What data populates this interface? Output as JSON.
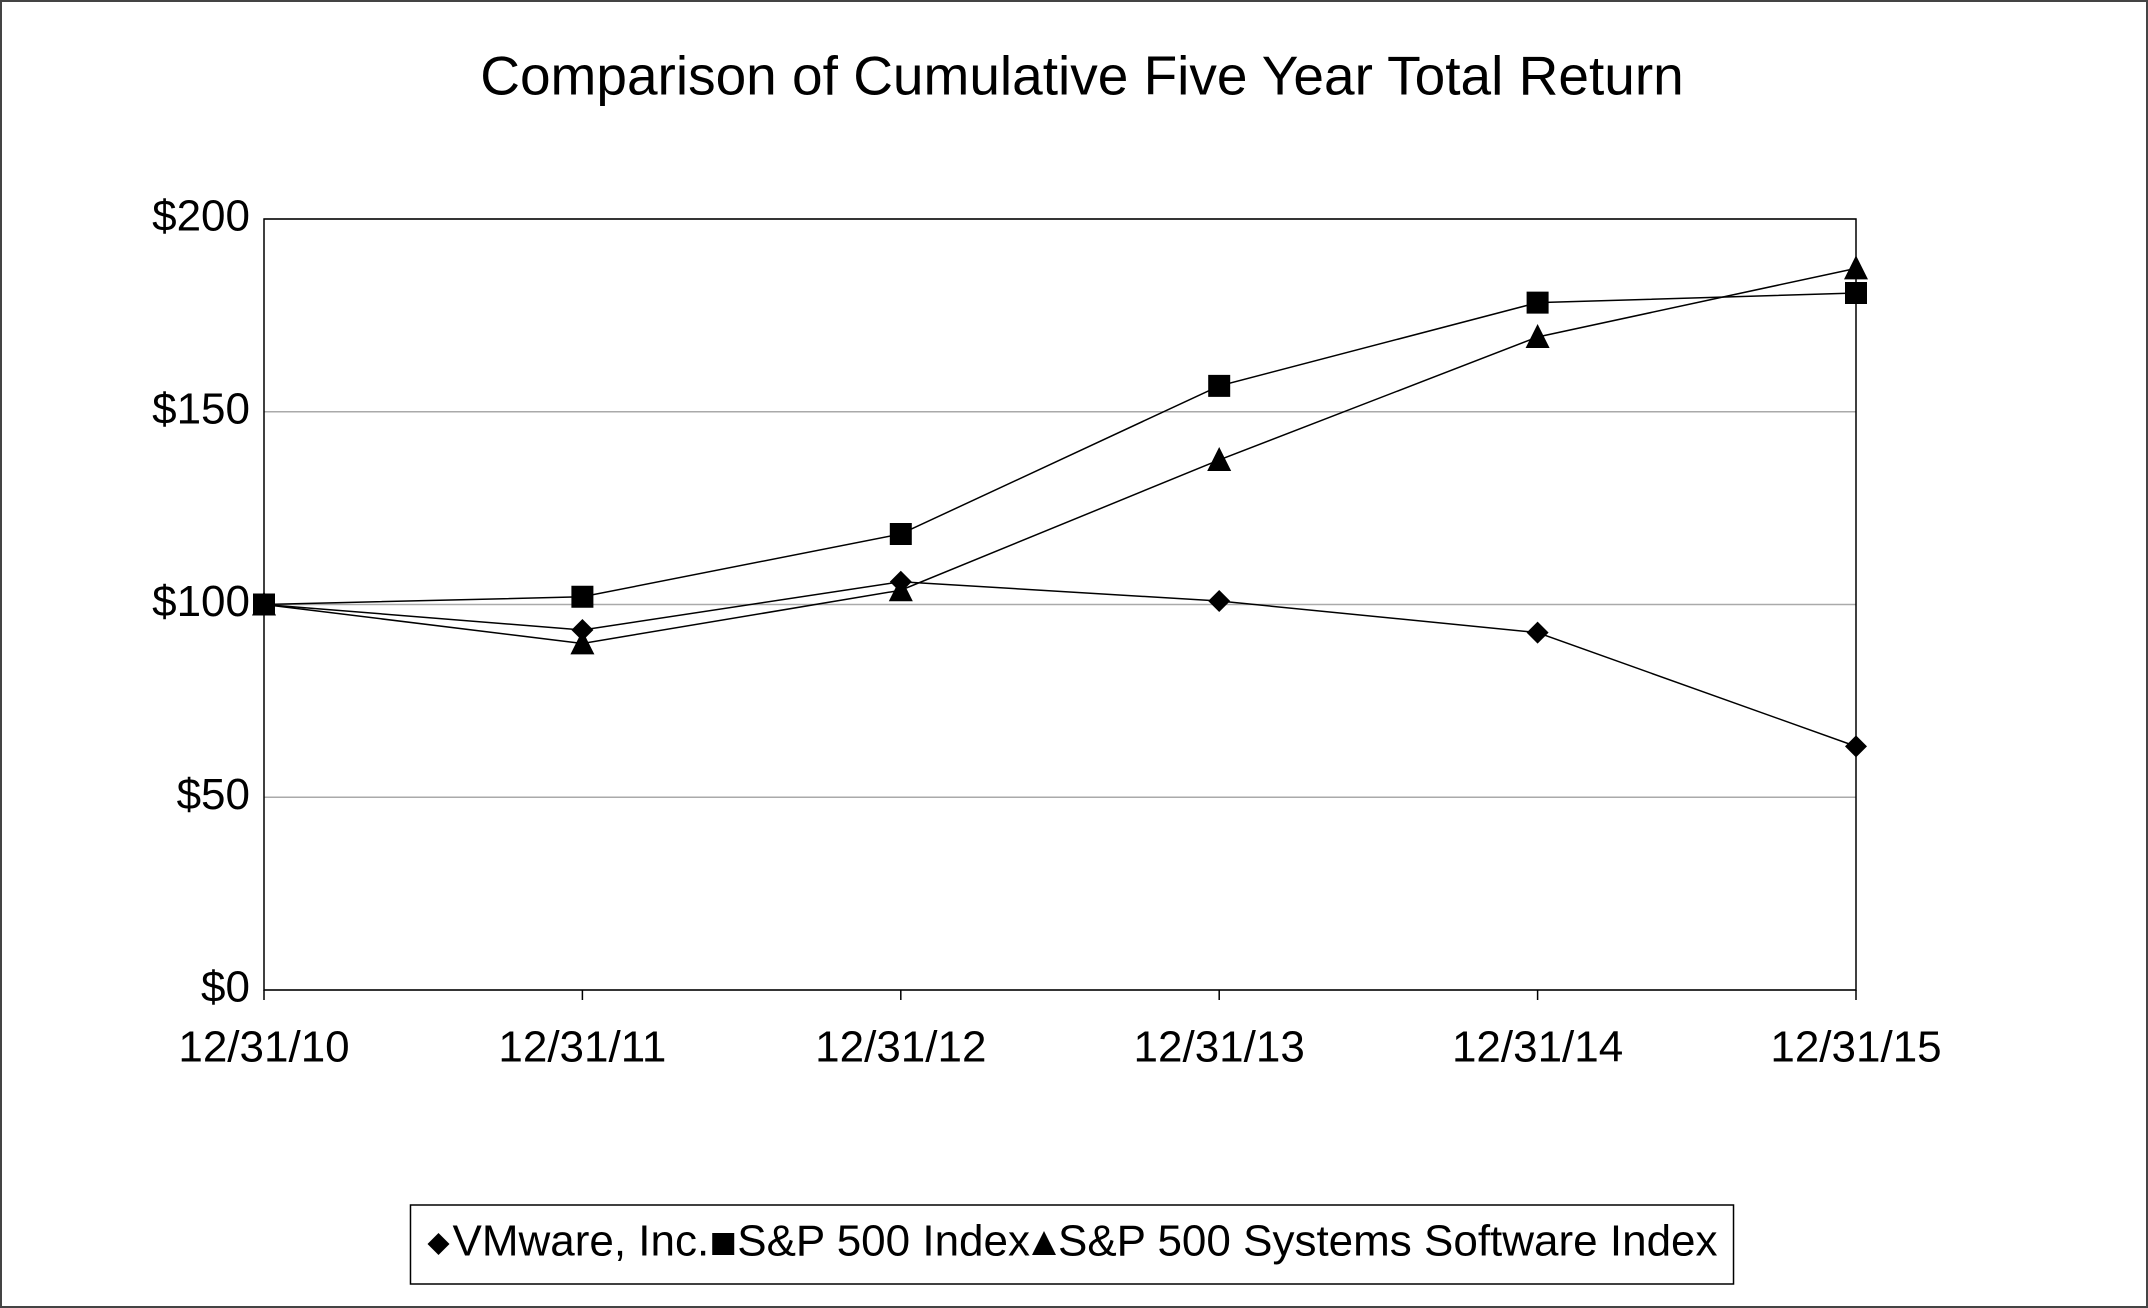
{
  "chart_data": {
    "type": "line",
    "title": "Comparison of Cumulative Five Year Total Return",
    "categories": [
      "12/31/10",
      "12/31/11",
      "12/31/12",
      "12/31/13",
      "12/31/14",
      "12/31/15"
    ],
    "series": [
      {
        "name": "VMware, Inc.",
        "color": "#000000",
        "marker": "diamond",
        "values": [
          100,
          93.4,
          105.9,
          100.9,
          92.7,
          63.2
        ]
      },
      {
        "name": "S&P 500 Index",
        "color": "#000000",
        "marker": "square",
        "values": [
          100,
          102,
          118.3,
          156.7,
          178.3,
          180.8
        ]
      },
      {
        "name": "S&P 500 Systems Software Index",
        "color": "#000000",
        "marker": "triangle",
        "values": [
          100,
          89.9,
          103.7,
          137.5,
          169.4,
          187.2
        ]
      }
    ],
    "ylim": [
      0,
      200
    ],
    "yticks": [
      {
        "value": 0,
        "label": "$0"
      },
      {
        "value": 50,
        "label": "$50"
      },
      {
        "value": 100,
        "label": "$100"
      },
      {
        "value": 150,
        "label": "$150"
      },
      {
        "value": 200,
        "label": "$200"
      }
    ],
    "grid": true,
    "legend": "bottom"
  }
}
